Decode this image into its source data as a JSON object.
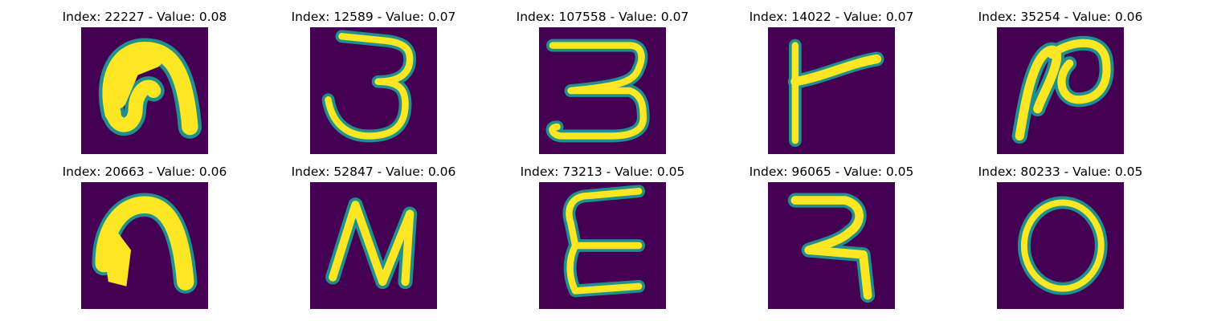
{
  "colors": {
    "background": "#440154",
    "edge": "#21908d",
    "fill": "#fde725"
  },
  "panels": [
    {
      "index": "22227",
      "value": "0.08",
      "title": "Index: 22227 - Value: 0.08",
      "glyph": "arch-loop-stroke"
    },
    {
      "index": "12589",
      "value": "0.07",
      "title": "Index: 12589 - Value: 0.07",
      "glyph": "devanagari-3-stroke"
    },
    {
      "index": "107558",
      "value": "0.07",
      "title": "Index: 107558 - Value: 0.07",
      "glyph": "devanagari-3-stroke"
    },
    {
      "index": "14022",
      "value": "0.07",
      "title": "Index: 14022 - Value: 0.07",
      "glyph": "flag-stroke"
    },
    {
      "index": "35254",
      "value": "0.06",
      "title": "Index: 35254 - Value: 0.06",
      "glyph": "loop-stroke"
    },
    {
      "index": "20663",
      "value": "0.06",
      "title": "Index: 20663 - Value: 0.06",
      "glyph": "arch-stroke"
    },
    {
      "index": "52847",
      "value": "0.06",
      "title": "Index: 52847 - Value: 0.06",
      "glyph": "n-stroke"
    },
    {
      "index": "73213",
      "value": "0.05",
      "title": "Index: 73213 - Value: 0.05",
      "glyph": "epsilon-stroke"
    },
    {
      "index": "96065",
      "value": "0.05",
      "title": "Index: 96065 - Value: 0.05",
      "glyph": "hook-stroke"
    },
    {
      "index": "80233",
      "value": "0.05",
      "title": "Index: 80233 - Value: 0.05",
      "glyph": "zero-stroke"
    }
  ]
}
